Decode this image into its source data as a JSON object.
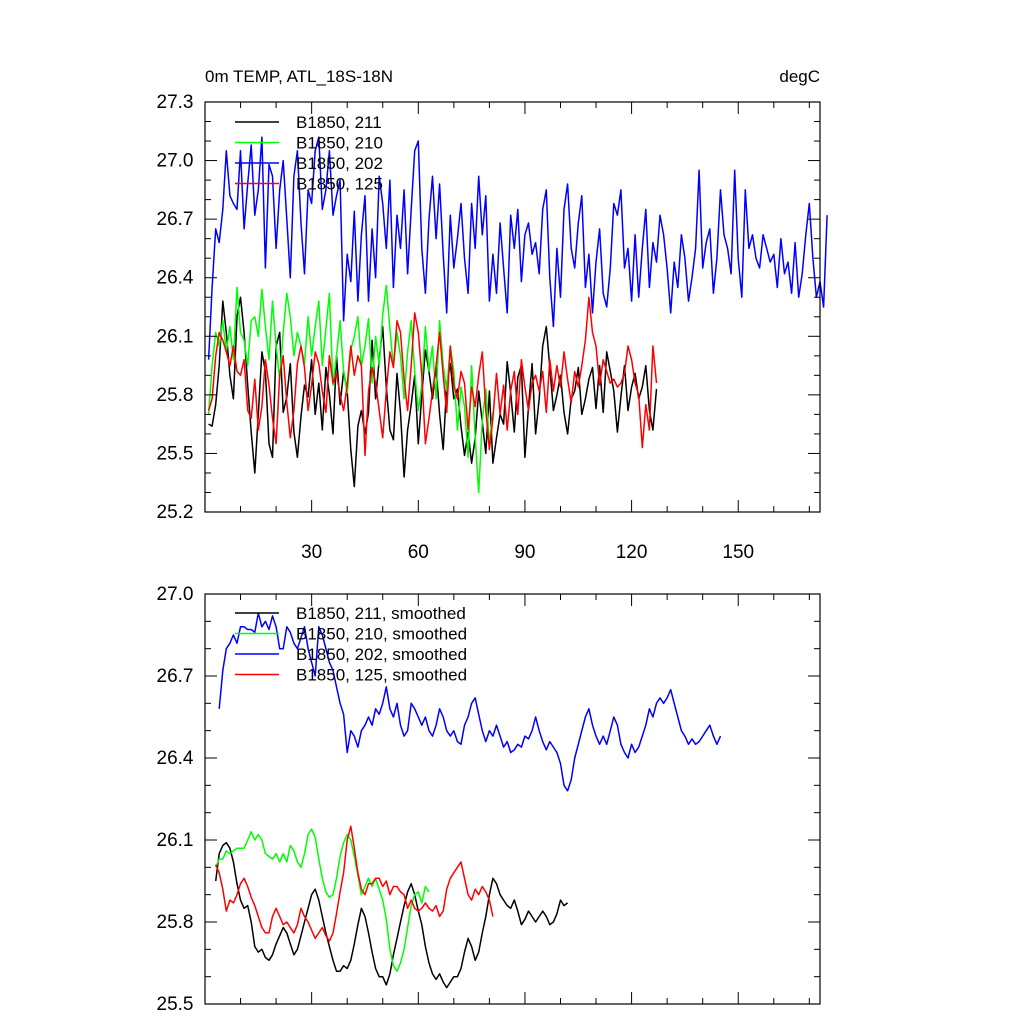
{
  "chart_data": [
    {
      "type": "line",
      "title": "0m TEMP, ATL_18S-18N",
      "units": "degC",
      "xlabel": "",
      "ylabel": "",
      "xlim": [
        0,
        173
      ],
      "ylim": [
        25.2,
        27.3
      ],
      "xticks": [
        30,
        60,
        90,
        120,
        150
      ],
      "yticks": [
        25.2,
        25.5,
        25.8,
        26.1,
        26.4,
        26.7,
        27.0,
        27.3
      ],
      "ytick_labels": [
        "25.2",
        "25.5",
        "25.8",
        "26.1",
        "26.4",
        "26.7",
        "27.0",
        "27.3"
      ],
      "xtick_labels": [
        "30",
        "60",
        "90",
        "120",
        "150"
      ],
      "legend_position": "top-left",
      "series": [
        {
          "name": "B1850, 211",
          "color": "#000000",
          "x_start": 1,
          "values": [
            25.65,
            25.64,
            25.75,
            25.95,
            26.28,
            26.12,
            25.9,
            25.78,
            26.2,
            26.3,
            26.12,
            25.85,
            25.61,
            25.4,
            25.7,
            26.02,
            25.92,
            25.55,
            25.48,
            26.05,
            26.12,
            25.71,
            25.79,
            25.96,
            25.61,
            25.48,
            25.69,
            25.85,
            25.79,
            25.98,
            25.7,
            25.86,
            25.62,
            25.94,
            25.8,
            25.6,
            26.0,
            25.75,
            25.92,
            25.82,
            25.52,
            25.33,
            25.64,
            25.72,
            25.6,
            25.71,
            26.08,
            25.78,
            25.98,
            26.15,
            25.84,
            25.62,
            25.57,
            25.91,
            25.71,
            25.38,
            25.62,
            25.75,
            25.9,
            25.55,
            25.8,
            26.03,
            25.92,
            25.78,
            25.94,
            25.7,
            25.52,
            25.85,
            25.96,
            25.78,
            25.83,
            25.64,
            25.49,
            25.61,
            25.45,
            25.58,
            25.82,
            25.66,
            25.5,
            25.82,
            25.45,
            25.58,
            25.7,
            25.65,
            25.97,
            25.81,
            25.61,
            25.89,
            25.95,
            25.48,
            25.74,
            25.96,
            25.6,
            25.78,
            26.05,
            26.15,
            25.94,
            25.72,
            25.8,
            25.9,
            25.71,
            25.6,
            25.78,
            25.82,
            25.94,
            25.7,
            25.78,
            25.88,
            25.94,
            25.73,
            25.95,
            25.71,
            26.02,
            25.92,
            25.82,
            25.61,
            25.79,
            25.95,
            25.72,
            25.84,
            25.91,
            25.78,
            25.84,
            25.95,
            25.72,
            25.62,
            25.83
          ]
        },
        {
          "name": "B1850, 210",
          "color": "#00ff00",
          "x_start": 1,
          "values": [
            25.7,
            25.95,
            26.12,
            26.05,
            26.18,
            26.02,
            26.15,
            25.98,
            26.35,
            26.12,
            26.08,
            25.95,
            26.18,
            26.2,
            26.1,
            26.34,
            26.15,
            25.98,
            26.28,
            26.05,
            25.88,
            26.12,
            26.32,
            26.2,
            26.0,
            26.12,
            26.05,
            25.96,
            26.2,
            26.0,
            26.15,
            26.28,
            25.95,
            26.14,
            26.32,
            25.85,
            26.0,
            26.18,
            25.92,
            25.81,
            26.03,
            26.1,
            26.2,
            25.95,
            26.05,
            26.19,
            25.86,
            26.1,
            25.95,
            26.21,
            26.36,
            26.14,
            25.94,
            26.12,
            26.0,
            25.78,
            26.02,
            26.18,
            25.92,
            25.72,
            25.85,
            26.15,
            25.92,
            26.05,
            25.78,
            26.18,
            25.95,
            25.82,
            26.05,
            25.92,
            25.62,
            25.84,
            25.74,
            25.48,
            25.95,
            25.58,
            25.3,
            25.67,
            25.83,
            25.55,
            25.71
          ]
        },
        {
          "name": "B1850, 202",
          "color": "#0000ff",
          "x_start": 1,
          "values": [
            25.98,
            26.35,
            26.65,
            26.58,
            26.75,
            27.05,
            26.82,
            26.78,
            26.75,
            27.05,
            26.65,
            26.88,
            27.08,
            26.72,
            26.85,
            27.12,
            26.45,
            26.98,
            26.92,
            26.55,
            26.85,
            27.0,
            26.7,
            26.4,
            26.92,
            27.05,
            26.68,
            26.42,
            26.85,
            26.78,
            27.05,
            27.12,
            26.75,
            26.85,
            27.05,
            26.72,
            26.82,
            26.9,
            26.18,
            26.52,
            26.38,
            26.74,
            26.28,
            26.62,
            26.82,
            26.28,
            26.65,
            26.4,
            26.92,
            26.78,
            26.55,
            26.9,
            26.35,
            26.72,
            26.55,
            26.85,
            26.42,
            26.75,
            27.05,
            27.1,
            26.55,
            26.32,
            26.7,
            26.92,
            26.6,
            26.88,
            26.52,
            26.22,
            26.72,
            26.45,
            26.6,
            26.78,
            26.5,
            26.32,
            26.78,
            26.55,
            26.92,
            26.62,
            26.82,
            26.28,
            26.52,
            26.32,
            26.68,
            26.45,
            26.22,
            26.72,
            26.55,
            26.75,
            26.38,
            26.62,
            26.68,
            26.52,
            26.58,
            26.42,
            26.75,
            26.85,
            26.4,
            26.15,
            26.55,
            26.3,
            26.75,
            26.88,
            26.55,
            26.45,
            26.68,
            26.82,
            26.35,
            26.52,
            26.22,
            26.48,
            26.65,
            26.32,
            26.25,
            26.45,
            26.78,
            26.72,
            26.85,
            26.45,
            26.55,
            26.28,
            26.62,
            26.3,
            26.55,
            26.75,
            26.35,
            26.58,
            26.48,
            26.72,
            26.62,
            26.45,
            26.22,
            26.48,
            26.35,
            26.62,
            26.5,
            26.28,
            26.4,
            26.55,
            26.95,
            26.45,
            26.58,
            26.65,
            26.32,
            26.5,
            26.85,
            26.62,
            26.55,
            26.42,
            26.95,
            26.5,
            26.3,
            26.85,
            26.55,
            26.62,
            26.5,
            26.45,
            26.62,
            26.55,
            26.48,
            26.52,
            26.35,
            26.6,
            26.42,
            26.48,
            26.32,
            26.58,
            26.3,
            26.42,
            26.62,
            26.78,
            26.5,
            26.3,
            26.38,
            26.25,
            26.72
          ]
        },
        {
          "name": "B1850, 125",
          "color": "#ff0000",
          "x_start": 1,
          "values": [
            25.72,
            25.78,
            26.0,
            26.12,
            26.08,
            26.02,
            25.95,
            26.05,
            25.92,
            25.9,
            25.98,
            25.72,
            25.68,
            25.88,
            25.62,
            25.74,
            25.98,
            25.85,
            25.68,
            25.55,
            25.9,
            26.0,
            25.76,
            25.58,
            25.72,
            25.96,
            26.05,
            25.94,
            25.72,
            25.85,
            26.02,
            25.96,
            25.82,
            25.71,
            26.0,
            25.86,
            25.91,
            25.8,
            25.72,
            25.85,
            26.05,
            25.9,
            26.0,
            25.95,
            25.49,
            25.82,
            25.94,
            25.86,
            25.72,
            25.58,
            25.82,
            26.02,
            25.94,
            26.18,
            26.12,
            25.88,
            25.72,
            25.95,
            26.22,
            26.12,
            25.9,
            25.55,
            25.68,
            25.82,
            25.95,
            26.12,
            25.9,
            25.71,
            26.05,
            25.85,
            25.78,
            25.92,
            25.86,
            25.62,
            25.84,
            25.74,
            25.9,
            26.02,
            25.72,
            25.52,
            25.68,
            25.91,
            25.7,
            25.85,
            25.62,
            25.82,
            25.92,
            25.7,
            25.98,
            25.84,
            25.72,
            25.86,
            25.9,
            25.82,
            25.92,
            25.71,
            25.98,
            25.82,
            25.95,
            25.84,
            26.02,
            25.88,
            25.76,
            25.92,
            25.84,
            25.95,
            26.08,
            26.3,
            26.12,
            26.05,
            25.85,
            25.98,
            25.92,
            25.86,
            25.88,
            25.84,
            25.86,
            25.91,
            26.05,
            25.98,
            25.86,
            25.8,
            25.53,
            25.75,
            25.62,
            26.05,
            25.86
          ]
        }
      ]
    },
    {
      "type": "line",
      "title": "",
      "xlabel": "",
      "ylabel": "",
      "xlim": [
        0,
        173
      ],
      "ylim": [
        25.5,
        27.0
      ],
      "xticks": [
        30,
        60,
        90,
        120,
        150
      ],
      "yticks": [
        25.5,
        25.8,
        26.1,
        26.4,
        26.7,
        27.0
      ],
      "ytick_labels": [
        "25.5",
        "25.8",
        "26.1",
        "26.4",
        "26.7",
        "27.0"
      ],
      "xtick_labels": [],
      "legend_position": "top-left",
      "series": [
        {
          "name": "B1850, 211, smoothed",
          "color": "#000000",
          "x_start": 3,
          "values": [
            25.95,
            26.05,
            26.08,
            26.09,
            26.07,
            26.02,
            25.94,
            25.88,
            25.85,
            25.86,
            25.8,
            25.71,
            25.69,
            25.7,
            25.67,
            25.66,
            25.68,
            25.72,
            25.75,
            25.78,
            25.76,
            25.72,
            25.68,
            25.7,
            25.75,
            25.8,
            25.85,
            25.9,
            25.92,
            25.88,
            25.82,
            25.76,
            25.71,
            25.66,
            25.62,
            25.62,
            25.64,
            25.63,
            25.66,
            25.72,
            25.79,
            25.85,
            25.82,
            25.76,
            25.69,
            25.63,
            25.6,
            25.6,
            25.57,
            25.61,
            25.68,
            25.74,
            25.8,
            25.86,
            25.91,
            25.94,
            25.9,
            25.84,
            25.79,
            25.71,
            25.65,
            25.61,
            25.59,
            25.61,
            25.58,
            25.56,
            25.58,
            25.6,
            25.6,
            25.63,
            25.69,
            25.74,
            25.71,
            25.66,
            25.69,
            25.76,
            25.82,
            25.9,
            25.96,
            25.94,
            25.9,
            25.88,
            25.86,
            25.85,
            25.88,
            25.84,
            25.79,
            25.81,
            25.84,
            25.82,
            25.8,
            25.82,
            25.84,
            25.82,
            25.79,
            25.8,
            25.83,
            25.88,
            25.86,
            25.87
          ]
        },
        {
          "name": "B1850, 210, smoothed",
          "color": "#00ff00",
          "x_start": 3,
          "values": [
            26.0,
            26.03,
            26.03,
            26.06,
            26.05,
            26.06,
            26.07,
            26.07,
            26.07,
            26.1,
            26.13,
            26.1,
            26.12,
            26.1,
            26.05,
            26.04,
            26.03,
            26.05,
            26.02,
            26.05,
            26.02,
            26.08,
            26.06,
            26.02,
            26.0,
            26.05,
            26.12,
            26.14,
            26.11,
            26.03,
            25.96,
            25.91,
            25.89,
            25.9,
            25.96,
            26.04,
            26.09,
            26.12,
            26.1,
            26.04,
            25.97,
            25.9,
            25.93,
            25.96,
            25.93,
            25.96,
            25.92,
            25.88,
            25.81,
            25.7,
            25.64,
            25.62,
            25.65,
            25.7,
            25.78,
            25.86,
            25.9,
            25.91,
            25.87,
            25.93,
            25.91
          ]
        },
        {
          "name": "B1850, 202, smoothed",
          "color": "#0000ff",
          "x_start": 4,
          "values": [
            26.58,
            26.72,
            26.8,
            26.82,
            26.85,
            26.82,
            26.88,
            26.88,
            26.87,
            26.87,
            26.86,
            26.93,
            26.88,
            26.9,
            26.87,
            26.92,
            26.88,
            26.8,
            26.8,
            26.88,
            26.86,
            26.82,
            26.8,
            26.84,
            26.88,
            26.8,
            26.75,
            26.7,
            26.88,
            26.85,
            26.8,
            26.75,
            26.72,
            26.66,
            26.6,
            26.56,
            26.42,
            26.5,
            26.48,
            26.44,
            26.5,
            26.52,
            26.55,
            26.52,
            26.58,
            26.56,
            26.6,
            26.66,
            26.58,
            26.55,
            26.6,
            26.52,
            26.48,
            26.5,
            26.6,
            26.58,
            26.55,
            26.52,
            26.55,
            26.5,
            26.48,
            26.52,
            26.58,
            26.55,
            26.5,
            26.48,
            26.5,
            26.46,
            26.45,
            26.52,
            26.55,
            26.6,
            26.62,
            26.56,
            26.5,
            26.46,
            26.5,
            26.48,
            26.52,
            26.48,
            26.44,
            26.46,
            26.42,
            26.43,
            26.45,
            26.44,
            26.48,
            26.47,
            26.5,
            26.55,
            26.5,
            26.46,
            26.43,
            26.46,
            26.44,
            26.42,
            26.38,
            26.3,
            26.28,
            26.32,
            26.4,
            26.45,
            26.5,
            26.55,
            26.58,
            26.52,
            26.48,
            26.45,
            26.48,
            26.45,
            26.5,
            26.55,
            26.52,
            26.45,
            26.42,
            26.4,
            26.45,
            26.42,
            26.44,
            26.48,
            26.52,
            26.58,
            26.55,
            26.6,
            26.62,
            26.6,
            26.62,
            26.65,
            26.6,
            26.55,
            26.5,
            26.48,
            26.45,
            26.47,
            26.45,
            26.46,
            26.48,
            26.5,
            26.52,
            26.48,
            26.45,
            26.48
          ]
        },
        {
          "name": "B1850, 125, smoothed",
          "color": "#ff0000",
          "x_start": 3,
          "values": [
            26.01,
            25.98,
            25.92,
            25.84,
            25.88,
            25.87,
            25.9,
            25.94,
            25.96,
            25.93,
            25.89,
            25.86,
            25.82,
            25.78,
            25.76,
            25.76,
            25.82,
            25.85,
            25.82,
            25.79,
            25.8,
            25.78,
            25.76,
            25.79,
            25.85,
            25.82,
            25.8,
            25.77,
            25.74,
            25.76,
            25.78,
            25.75,
            25.73,
            25.76,
            25.83,
            25.91,
            25.98,
            26.1,
            26.15,
            26.07,
            25.98,
            25.92,
            25.9,
            25.94,
            25.94,
            25.96,
            25.96,
            25.93,
            25.95,
            25.9,
            25.93,
            25.93,
            25.91,
            25.9,
            25.85,
            25.88,
            25.85,
            25.84,
            25.85,
            25.87,
            25.85,
            25.84,
            25.86,
            25.82,
            25.84,
            25.92,
            25.96,
            25.98,
            26.0,
            26.02,
            25.96,
            25.9,
            25.88,
            25.92,
            25.9,
            25.93,
            25.91,
            25.88,
            25.82
          ]
        }
      ]
    }
  ]
}
